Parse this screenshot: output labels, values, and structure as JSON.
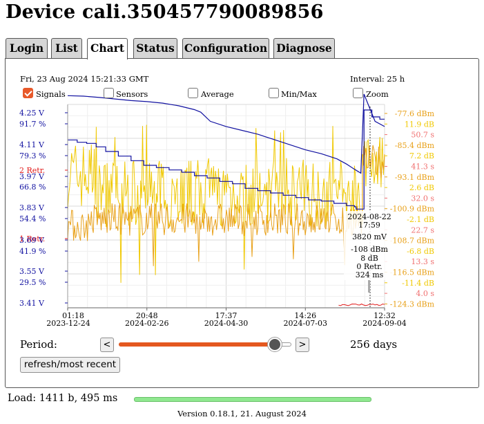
{
  "title": "Device cali.350457790089856",
  "tabs": [
    {
      "label": "Login",
      "active": false
    },
    {
      "label": "List",
      "active": false
    },
    {
      "label": "Chart",
      "active": true
    },
    {
      "label": "Status",
      "active": false
    },
    {
      "label": "Configuration",
      "active": false
    },
    {
      "label": "Diagnose",
      "active": false
    }
  ],
  "panel": {
    "timestamp": "Fri, 23 Aug 2024 15:21:33 GMT",
    "interval": "Interval: 25 h",
    "checkboxes": [
      {
        "label": "Signals",
        "checked": true
      },
      {
        "label": "Sensors",
        "checked": false
      },
      {
        "label": "Average",
        "checked": false
      },
      {
        "label": "Min/Max",
        "checked": false
      },
      {
        "label": "Zoom",
        "checked": false
      }
    ],
    "period_label": "Period:",
    "prev_label": "<",
    "next_label": ">",
    "period_days": "256 days",
    "period_fraction": 0.9,
    "refresh_label": "refresh/most recent"
  },
  "footer": {
    "load_text": "Load: 1411 b, 495 ms",
    "load_fraction": 1.0,
    "version": "Version 0.18.1, 21. August 2024"
  },
  "colors": {
    "voltage": "#1010a0",
    "retrans": "#e01818",
    "rssi": "#e8a018",
    "snr": "#f0c800",
    "rtt": "#f07070",
    "grid": "#dddddd",
    "accent": "#e8592a",
    "loadbar": "#90e890"
  },
  "chart_data": {
    "type": "line",
    "x_ticks": [
      {
        "time": "01:18",
        "date": "2023-12-24"
      },
      {
        "time": "20:48",
        "date": "2024-02-26"
      },
      {
        "time": "17:37",
        "date": "2024-04-30"
      },
      {
        "time": "14:26",
        "date": "2024-07-03"
      },
      {
        "time": "12:32",
        "date": "2024-09-04"
      }
    ],
    "xlim": [
      "2023-12-24",
      "2024-09-04"
    ],
    "left_axis_labels": [
      {
        "text": "4.25 V",
        "color": "#1010a0"
      },
      {
        "text": "91.7 %",
        "color": "#1010a0"
      },
      {
        "text": "4.11 V",
        "color": "#1010a0"
      },
      {
        "text": "79.3 %",
        "color": "#1010a0"
      },
      {
        "text": "2 Retr.",
        "color": "#e01818"
      },
      {
        "text": "3.97 V",
        "color": "#1010a0"
      },
      {
        "text": "66.8 %",
        "color": "#1010a0"
      },
      {
        "text": "3.83 V",
        "color": "#1010a0"
      },
      {
        "text": "54.4 %",
        "color": "#1010a0"
      },
      {
        "text": "1 Retr.",
        "color": "#e01818"
      },
      {
        "text": "3.69 V",
        "color": "#1010a0"
      },
      {
        "text": "41.9 %",
        "color": "#1010a0"
      },
      {
        "text": "3.55 V",
        "color": "#1010a0"
      },
      {
        "text": "29.5 %",
        "color": "#1010a0"
      },
      {
        "text": "3.41 V",
        "color": "#1010a0"
      }
    ],
    "right_axis_labels": [
      {
        "text": "-77.6 dBm",
        "color": "#e8a018"
      },
      {
        "text": "11.9 dB",
        "color": "#f0c800"
      },
      {
        "text": "50.7 s",
        "color": "#f07070"
      },
      {
        "text": "-85.4 dBm",
        "color": "#e8a018"
      },
      {
        "text": "7.2 dB",
        "color": "#f0c800"
      },
      {
        "text": "41.3 s",
        "color": "#f07070"
      },
      {
        "text": "-93.1 dBm",
        "color": "#e8a018"
      },
      {
        "text": "2.6 dB",
        "color": "#f0c800"
      },
      {
        "text": "32.0 s",
        "color": "#f07070"
      },
      {
        "text": "-100.9 dBm",
        "color": "#e8a018"
      },
      {
        "text": "-2.1 dB",
        "color": "#f0c800"
      },
      {
        "text": "22.7 s",
        "color": "#f07070"
      },
      {
        "text": "-108.7 dBm",
        "color": "#e8a018"
      },
      {
        "text": "-6.8 dB",
        "color": "#f0c800"
      },
      {
        "text": "13.3 s",
        "color": "#f07070"
      },
      {
        "text": "-116.5 dBm",
        "color": "#e8a018"
      },
      {
        "text": "-11.4 dB",
        "color": "#f0c800"
      },
      {
        "text": "4.0 s",
        "color": "#f07070"
      },
      {
        "text": "-124.3 dBm",
        "color": "#e8a018"
      }
    ],
    "tooltip": [
      "2024-08-22",
      "17:59",
      "3820 mV",
      "-108 dBm",
      "8 dB",
      "0 Retr.",
      "324 ms"
    ],
    "series": [
      {
        "unit": "V",
        "color": "#1010a0",
        "points": [
          [
            0,
            4.12
          ],
          [
            0.03,
            4.11
          ],
          [
            0.06,
            4.105
          ],
          [
            0.09,
            4.09
          ],
          [
            0.12,
            4.07
          ],
          [
            0.16,
            4.05
          ],
          [
            0.2,
            4.03
          ],
          [
            0.24,
            4.01
          ],
          [
            0.28,
            4.0
          ],
          [
            0.32,
            3.99
          ],
          [
            0.36,
            3.98
          ],
          [
            0.4,
            3.965
          ],
          [
            0.44,
            3.955
          ],
          [
            0.48,
            3.94
          ],
          [
            0.52,
            3.93
          ],
          [
            0.56,
            3.91
          ],
          [
            0.6,
            3.9
          ],
          [
            0.64,
            3.89
          ],
          [
            0.68,
            3.88
          ],
          [
            0.72,
            3.87
          ],
          [
            0.76,
            3.86
          ],
          [
            0.8,
            3.855
          ],
          [
            0.84,
            3.845
          ],
          [
            0.88,
            3.835
          ],
          [
            0.905,
            3.83
          ],
          [
            0.91,
            3.82
          ],
          [
            0.935,
            4.25
          ],
          [
            0.96,
            4.22
          ],
          [
            0.985,
            4.21
          ],
          [
            1.0,
            4.21
          ]
        ]
      },
      {
        "unit": "%",
        "color": "#1010a0",
        "points": [
          [
            0,
            91.9
          ],
          [
            0.05,
            91.7
          ],
          [
            0.1,
            91.2
          ],
          [
            0.15,
            90.6
          ],
          [
            0.2,
            90.0
          ],
          [
            0.25,
            89.6
          ],
          [
            0.3,
            89.0
          ],
          [
            0.35,
            88.0
          ],
          [
            0.4,
            86.5
          ],
          [
            0.42,
            85.5
          ],
          [
            0.45,
            82.0
          ],
          [
            0.5,
            80.0
          ],
          [
            0.55,
            78.5
          ],
          [
            0.6,
            77.0
          ],
          [
            0.65,
            75.0
          ],
          [
            0.7,
            73.0
          ],
          [
            0.75,
            71.0
          ],
          [
            0.8,
            69.5
          ],
          [
            0.85,
            67.5
          ],
          [
            0.88,
            65.5
          ],
          [
            0.905,
            63.5
          ],
          [
            0.925,
            62.0
          ],
          [
            0.935,
            92.5
          ],
          [
            0.95,
            88.0
          ],
          [
            0.97,
            82.0
          ],
          [
            1.0,
            80.0
          ]
        ]
      },
      {
        "name_hidden": true,
        "unit": "dB",
        "color": "#f0c800",
        "mean": 2.0,
        "amp": 5.0,
        "spike_max": 11.9
      },
      {
        "name_hidden": true,
        "unit": "dBm",
        "color": "#e8a018",
        "mean": -102.0,
        "amp": 4.0,
        "spike_min": -116.0
      },
      {
        "name_hidden": true,
        "unit": "s",
        "color": "#e01818",
        "values_retr_end": 0.05
      }
    ]
  }
}
